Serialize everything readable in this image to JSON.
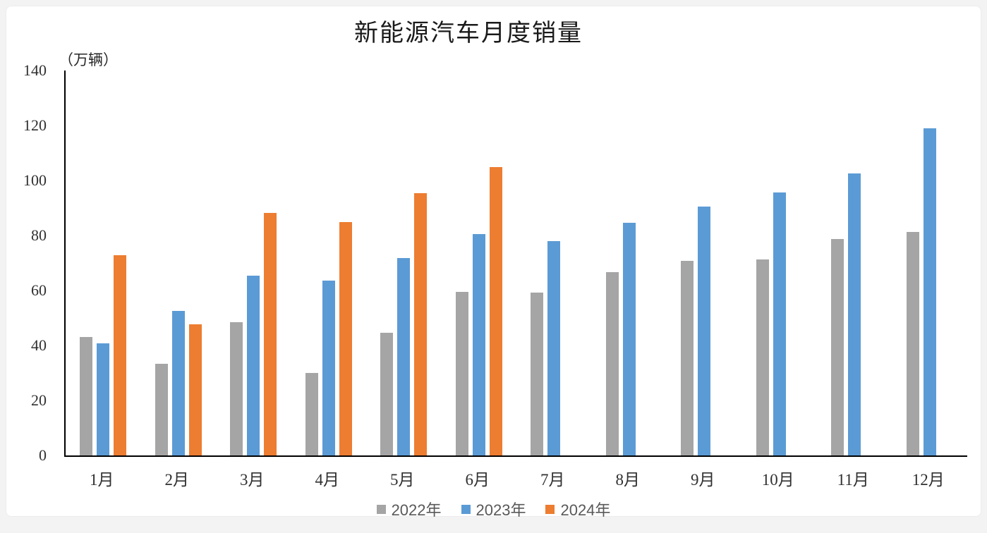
{
  "page": {
    "background_color": "#f3f3f4",
    "card_background_color": "#ffffff"
  },
  "chart_data": {
    "type": "bar",
    "title": "新能源汽车月度销量",
    "unit_label": "（万辆）",
    "categories": [
      "1月",
      "2月",
      "3月",
      "4月",
      "5月",
      "6月",
      "7月",
      "8月",
      "9月",
      "10月",
      "11月",
      "12月"
    ],
    "series": [
      {
        "name": "2022年",
        "color": "#A5A5A5",
        "values": [
          43.1,
          33.4,
          48.4,
          29.9,
          44.7,
          59.6,
          59.3,
          66.6,
          70.8,
          71.4,
          78.6,
          81.4
        ]
      },
      {
        "name": "2023年",
        "color": "#5B9BD5",
        "values": [
          40.8,
          52.5,
          65.3,
          63.6,
          71.7,
          80.6,
          78.0,
          84.6,
          90.4,
          95.6,
          102.6,
          119.1
        ]
      },
      {
        "name": "2024年",
        "color": "#ED7D31",
        "values": [
          72.9,
          47.7,
          88.3,
          85.0,
          95.5,
          104.9,
          null,
          null,
          null,
          null,
          null,
          null
        ]
      }
    ],
    "xlabel": "",
    "ylabel": "（万辆）",
    "ylim": [
      0,
      140
    ],
    "yticks": [
      0,
      20,
      40,
      60,
      80,
      100,
      120,
      140
    ],
    "grid": false,
    "axis_color": "#000000",
    "legend_position": "bottom",
    "legend_entries": [
      "2022年",
      "2023年",
      "2024年"
    ]
  }
}
